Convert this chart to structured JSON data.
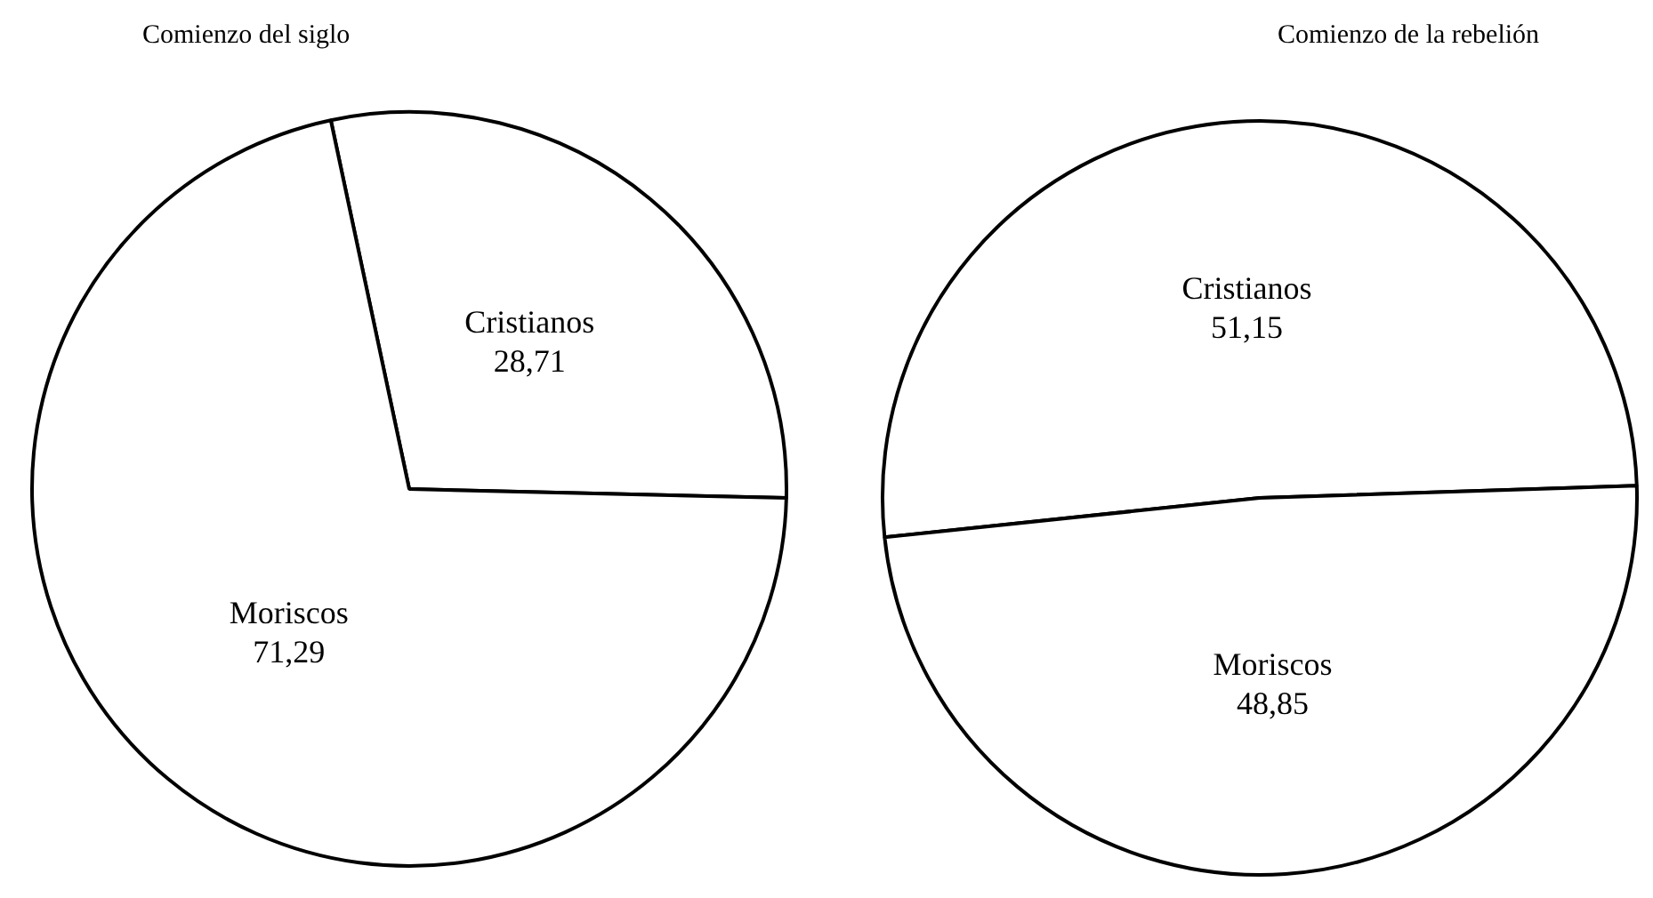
{
  "chart_data": [
    {
      "type": "pie",
      "title": "Comienzo del siglo",
      "categories": [
        "Cristianos",
        "Moriscos"
      ],
      "values": [
        28.71,
        71.29
      ],
      "value_labels": [
        "28,71",
        "71,29"
      ],
      "colors": [
        "#ffffff",
        "#ffffff"
      ],
      "legend": false
    },
    {
      "type": "pie",
      "title": "Comienzo de la rebelión",
      "categories": [
        "Cristianos",
        "Moriscos"
      ],
      "values": [
        51.15,
        48.85
      ],
      "value_labels": [
        "51,15",
        "48,85"
      ],
      "colors": [
        "#ffffff",
        "#ffffff"
      ],
      "legend": false
    }
  ]
}
